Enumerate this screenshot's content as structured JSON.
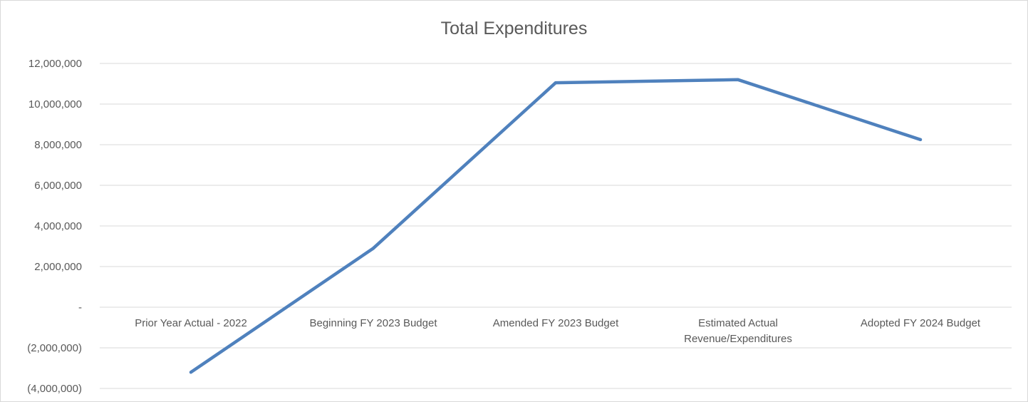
{
  "chart_data": {
    "type": "line",
    "title": "Total Expenditures",
    "xlabel": "",
    "ylabel": "",
    "categories": [
      [
        "Prior Year Actual - 2022"
      ],
      [
        "Beginning FY 2023 Budget"
      ],
      [
        "Amended FY 2023 Budget"
      ],
      [
        "Estimated Actual",
        "Revenue/Expenditures"
      ],
      [
        "Adopted FY 2024 Budget"
      ]
    ],
    "series": [
      {
        "values": [
          -3200000,
          2900000,
          11050000,
          11200000,
          8250000
        ],
        "color": "#4f81bd"
      }
    ],
    "ylim": [
      -4000000,
      12000000
    ],
    "yticks": [
      12000000,
      10000000,
      8000000,
      6000000,
      4000000,
      2000000,
      0,
      -2000000,
      -4000000
    ],
    "ytick_labels": [
      "12,000,000",
      "10,000,000",
      "8,000,000",
      "6,000,000",
      "4,000,000",
      "2,000,000",
      "-",
      "(2,000,000)",
      "(4,000,000)"
    ],
    "grid": true,
    "gridline_color": "#d9d9d9",
    "legend": "none"
  }
}
